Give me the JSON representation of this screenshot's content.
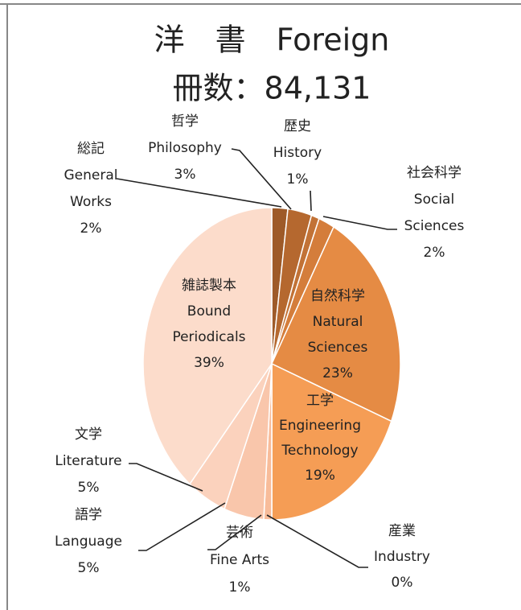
{
  "chart_data": {
    "type": "pie",
    "title": "洋　書　Foreign",
    "subtitle": "冊数：84,131",
    "categories": [
      [
        "総記",
        "General",
        "Works"
      ],
      [
        "哲学",
        "Philosophy"
      ],
      [
        "歴史",
        "History"
      ],
      [
        "社会科学",
        "Social",
        "Sciences"
      ],
      [
        "自然科学",
        "Natural",
        "Sciences"
      ],
      [
        "工学",
        "Engineering",
        "Technology"
      ],
      [
        "産業",
        "Industry"
      ],
      [
        "芸術",
        "Fine Arts"
      ],
      [
        "語学",
        "Language"
      ],
      [
        "文学",
        "Literature"
      ],
      [
        "雑誌製本",
        "Bound",
        "Periodicals"
      ]
    ],
    "values": [
      2,
      3,
      1,
      2,
      23,
      19,
      0,
      1,
      5,
      5,
      39
    ],
    "value_labels": [
      "2%",
      "3%",
      "1%",
      "2%",
      "23%",
      "19%",
      "0%",
      "1%",
      "5%",
      "5%",
      "39%"
    ],
    "colors": [
      "#9e5a28",
      "#b5682f",
      "#c27236",
      "#d47d3b",
      "#e58b44",
      "#f59d55",
      "#f6ad78",
      "#f8bc9a",
      "#f9c6ab",
      "#fbd2bd",
      "#fcdccb"
    ]
  }
}
